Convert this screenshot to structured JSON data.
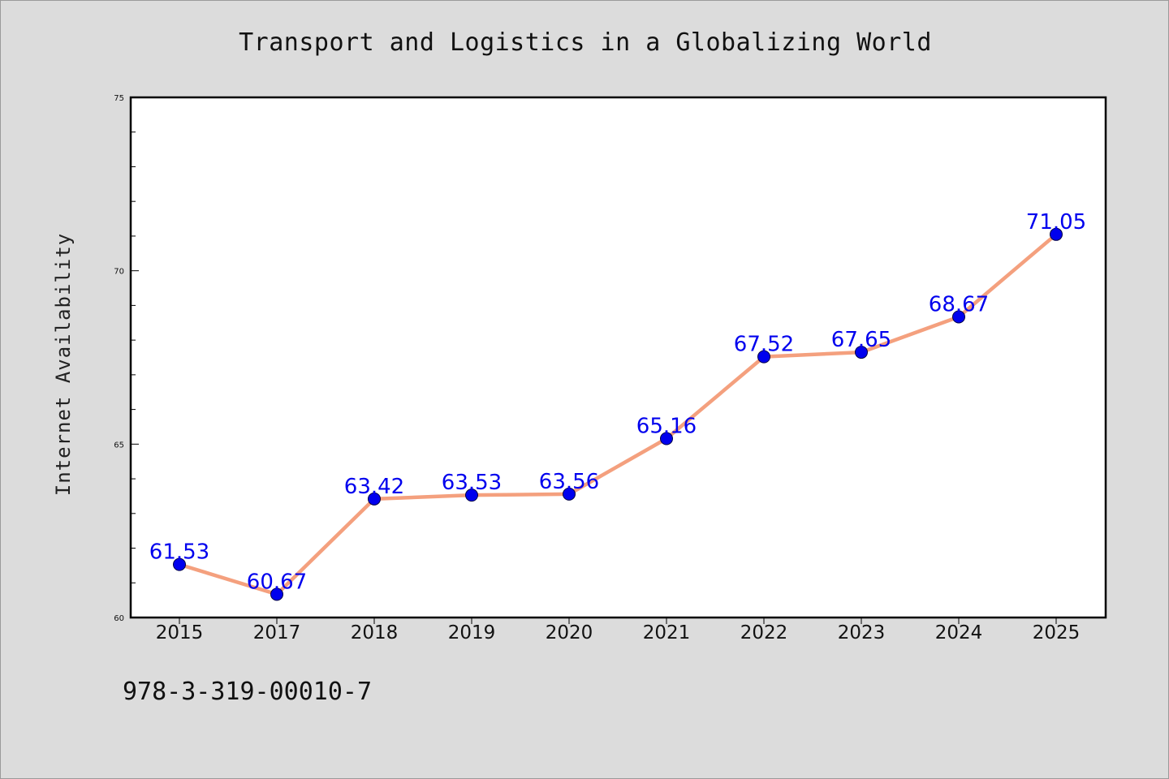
{
  "title": "Transport and Logistics in a Globalizing World",
  "ylabel": "Internet Availability",
  "isbn": "978-3-319-00010-7",
  "colors": {
    "background": "#dcdcdc",
    "plot_background": "#ffffff",
    "line": "#f4a07e",
    "marker": "#0000ee",
    "data_label": "#0000ee"
  },
  "chart_data": {
    "type": "line",
    "title": "Transport and Logistics in a Globalizing World",
    "xlabel": "",
    "ylabel": "Internet Availability",
    "categories": [
      "2015",
      "2017",
      "2018",
      "2019",
      "2020",
      "2021",
      "2022",
      "2023",
      "2024",
      "2025"
    ],
    "series": [
      {
        "values": [
          61.53,
          60.67,
          63.42,
          63.53,
          63.56,
          65.16,
          67.52,
          67.65,
          68.67,
          71.05
        ],
        "data_labels": [
          "61.53",
          "60.67",
          "63.42",
          "63.53",
          "63.56",
          "65.16",
          "67.52",
          "67.65",
          "68.67",
          "71.05"
        ]
      }
    ],
    "ylim": [
      60,
      75
    ],
    "yticks": [
      60,
      65,
      70,
      75
    ],
    "ytick_labels": [
      "60",
      "65",
      "70",
      "75"
    ],
    "minor_ytick_step": 1,
    "grid": false,
    "legend": "none"
  }
}
